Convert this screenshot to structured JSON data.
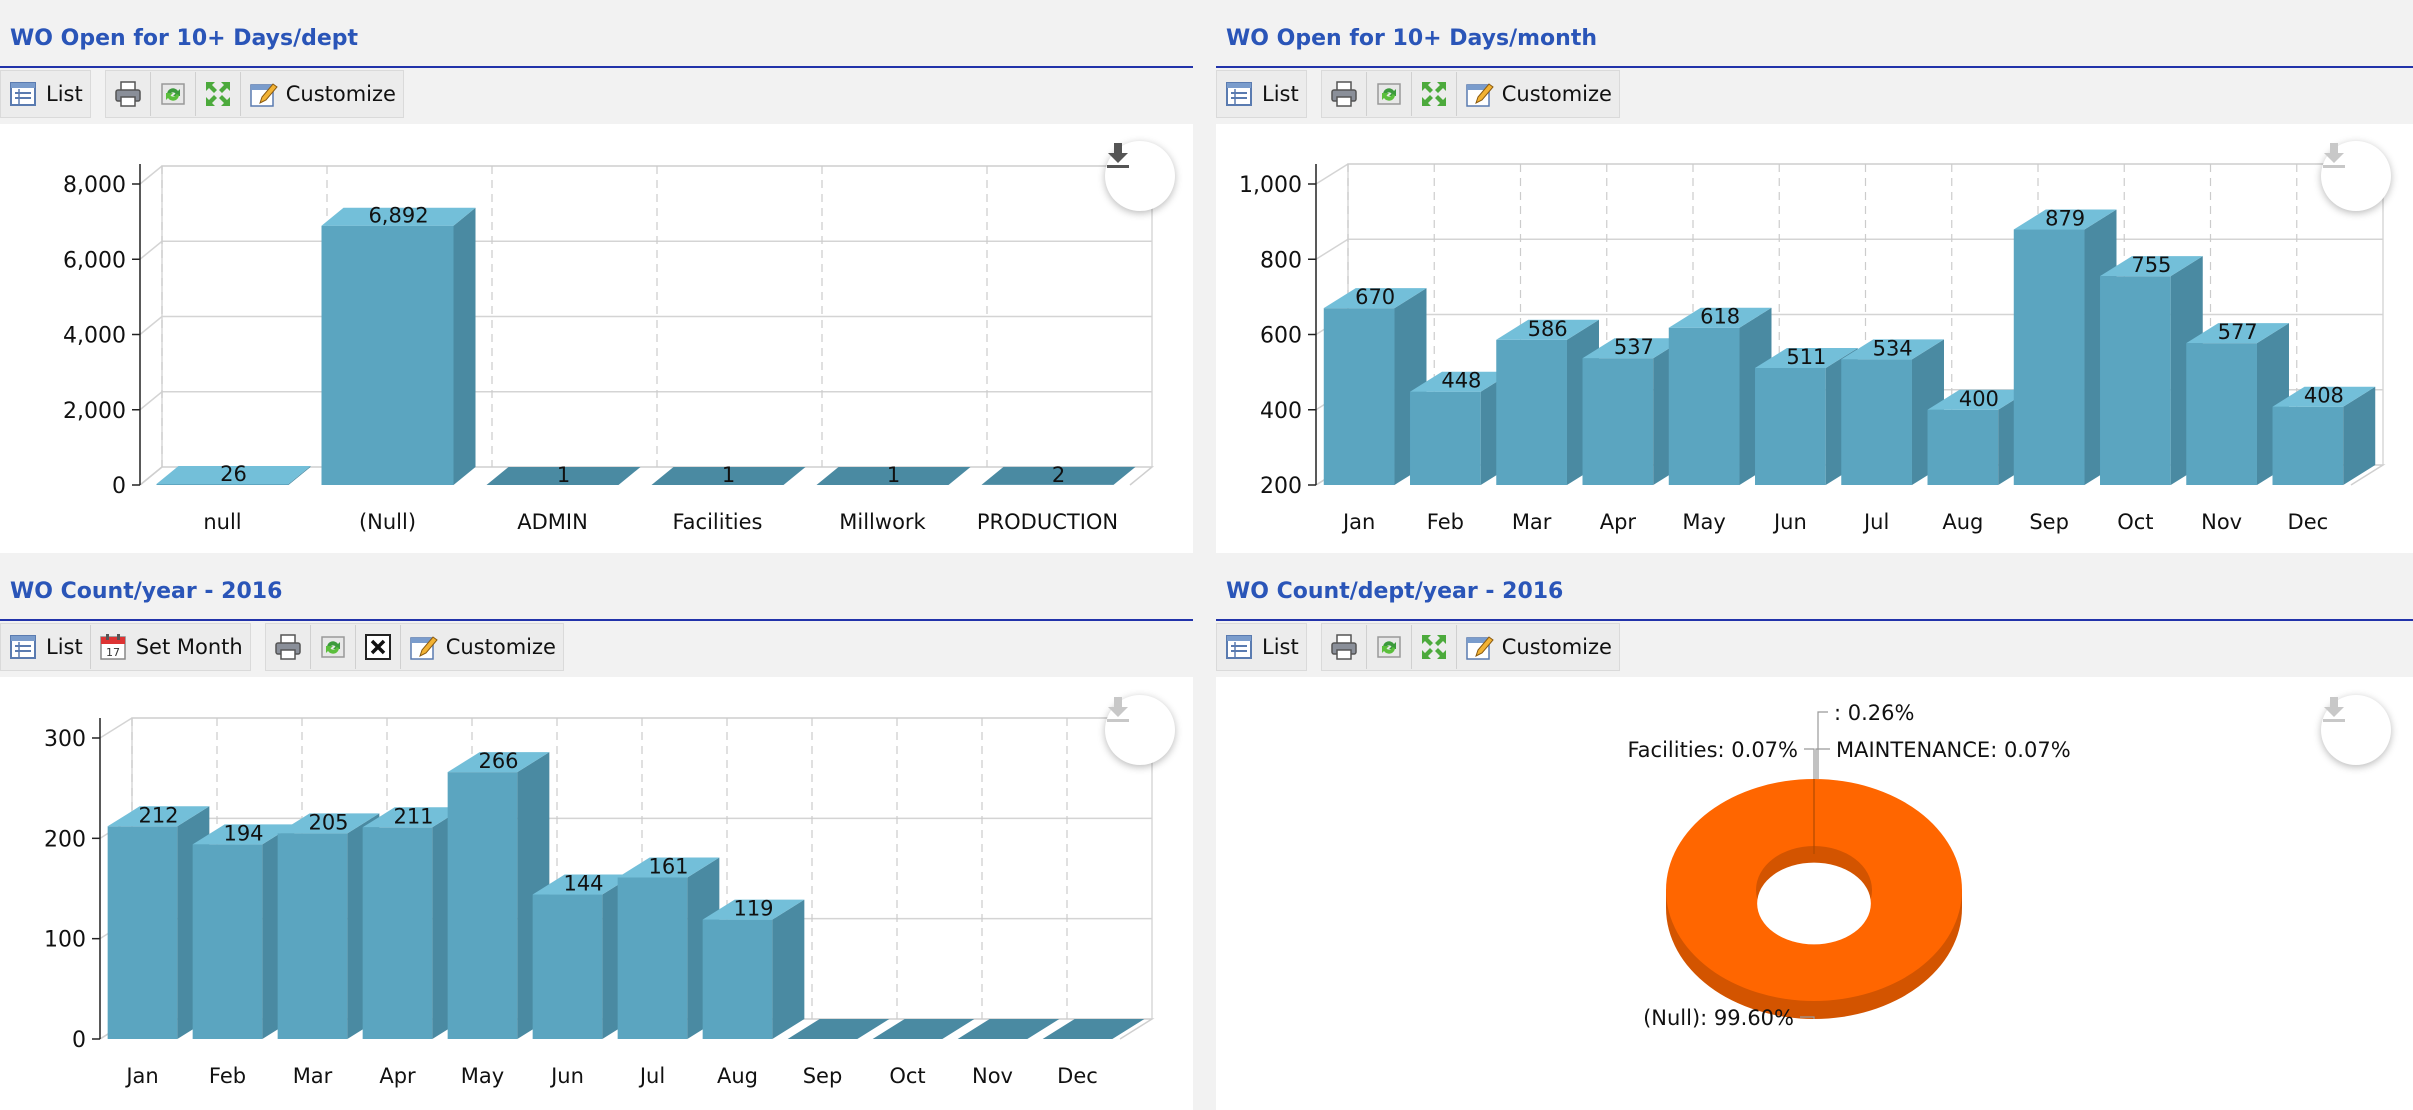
{
  "panels": [
    {
      "title": "WO Open for 10+ Days/dept",
      "toolbar": {
        "list": "List",
        "customize": "Customize"
      }
    },
    {
      "title": "WO Open for 10+ Days/month",
      "toolbar": {
        "list": "List",
        "customize": "Customize"
      }
    },
    {
      "title": "WO Count/year - 2016",
      "toolbar": {
        "list": "List",
        "set_month": "Set Month",
        "customize": "Customize"
      }
    },
    {
      "title": "WO Count/dept/year - 2016",
      "toolbar": {
        "list": "List",
        "customize": "Customize"
      }
    }
  ],
  "colors": {
    "bar_front": "#5ba5c0",
    "bar_top": "#73bfd9",
    "bar_side": "#4a8aa2",
    "donut": "#ff6600",
    "donut_side": "#d35400",
    "title": "#2a55b8"
  },
  "chart_data": [
    {
      "type": "bar",
      "categories": [
        "null",
        "(Null)",
        "ADMIN",
        "Facilities",
        "Millwork",
        "PRODUCTION"
      ],
      "values": [
        26,
        6892,
        1,
        1,
        1,
        2
      ],
      "labels": [
        "26",
        "6,892",
        "1",
        "1",
        "1",
        "2"
      ],
      "ylim": [
        0,
        8000
      ],
      "yticks": [
        "0",
        "2,000",
        "4,000",
        "6,000",
        "8,000"
      ],
      "ytick_values": [
        0,
        2000,
        4000,
        6000,
        8000
      ],
      "grid": true
    },
    {
      "type": "bar",
      "categories": [
        "Jan",
        "Feb",
        "Mar",
        "Apr",
        "May",
        "Jun",
        "Jul",
        "Aug",
        "Sep",
        "Oct",
        "Nov",
        "Dec"
      ],
      "values": [
        670,
        448,
        586,
        537,
        618,
        511,
        534,
        400,
        879,
        755,
        577,
        408
      ],
      "labels": [
        "670",
        "448",
        "586",
        "537",
        "618",
        "511",
        "534",
        "400",
        "879",
        "755",
        "577",
        "408"
      ],
      "ylim": [
        200,
        1000
      ],
      "yticks": [
        "200",
        "400",
        "600",
        "800",
        "1,000"
      ],
      "ytick_values": [
        200,
        400,
        600,
        800,
        1000
      ],
      "grid": true
    },
    {
      "type": "bar",
      "categories": [
        "Jan",
        "Feb",
        "Mar",
        "Apr",
        "May",
        "Jun",
        "Jul",
        "Aug",
        "Sep",
        "Oct",
        "Nov",
        "Dec"
      ],
      "values": [
        212,
        194,
        205,
        211,
        266,
        144,
        161,
        119,
        0,
        0,
        0,
        0
      ],
      "labels": [
        "212",
        "194",
        "205",
        "211",
        "266",
        "144",
        "161",
        "119",
        "",
        "",
        "",
        ""
      ],
      "ylim": [
        0,
        300
      ],
      "yticks": [
        "0",
        "100",
        "200",
        "300"
      ],
      "ytick_values": [
        0,
        100,
        200,
        300
      ],
      "grid": true
    },
    {
      "type": "pie",
      "slices": [
        {
          "label": "(Null): 99.60%",
          "value": 99.6
        },
        {
          "label": ": 0.26%",
          "value": 0.26
        },
        {
          "label": "Facilities: 0.07%",
          "value": 0.07
        },
        {
          "label": "MAINTENANCE: 0.07%",
          "value": 0.07
        }
      ]
    }
  ]
}
